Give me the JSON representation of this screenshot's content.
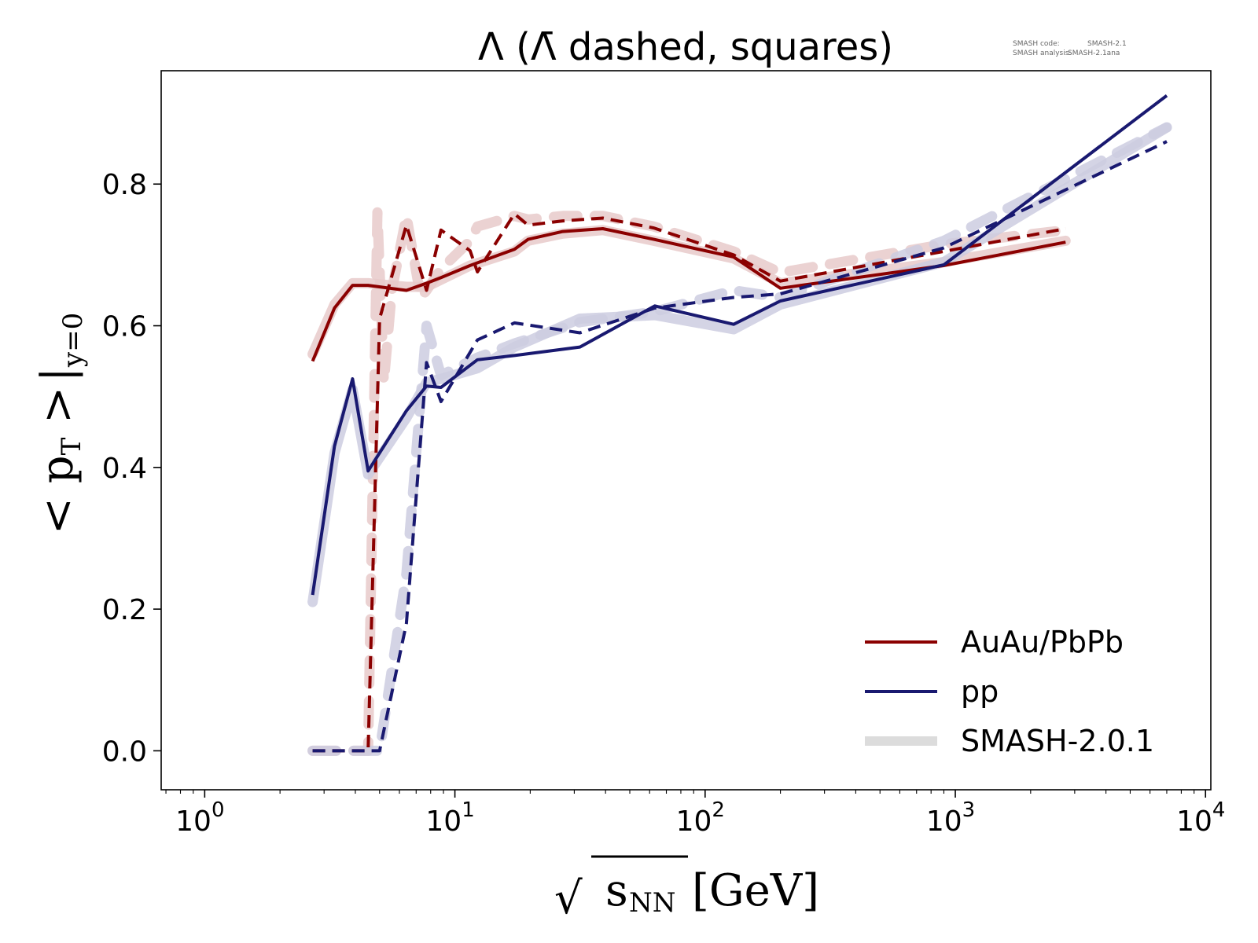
{
  "chart_data": {
    "type": "line",
    "title": "Λ (Λ̄ dashed, squares)",
    "annotation": {
      "code_label": "SMASH code:",
      "code_value": "SMASH-2.1",
      "analysis_label": "SMASH analysis:",
      "analysis_value": "SMASH-2.1ana"
    },
    "xlabel": {
      "prefix": "√",
      "main": "s",
      "sub": "NN",
      "unit": "[GeV]"
    },
    "ylabel": {
      "open": "< ",
      "main": "p",
      "sub": "T",
      "close": " >",
      "bar": "|",
      "evaluated_at": "y=0"
    },
    "xscale": "log",
    "xlim": [
      0.67,
      10500
    ],
    "ylim": [
      -0.055,
      0.96
    ],
    "xticks": [
      {
        "value": 1,
        "base": "10",
        "exp": "0"
      },
      {
        "value": 10,
        "base": "10",
        "exp": "1"
      },
      {
        "value": 100,
        "base": "10",
        "exp": "2"
      },
      {
        "value": 1000,
        "base": "10",
        "exp": "3"
      },
      {
        "value": 10000,
        "base": "10",
        "exp": "4"
      }
    ],
    "yticks": [
      {
        "value": 0.0,
        "label": "0.0"
      },
      {
        "value": 0.2,
        "label": "0.2"
      },
      {
        "value": 0.4,
        "label": "0.4"
      },
      {
        "value": 0.6,
        "label": "0.6"
      },
      {
        "value": 0.8,
        "label": "0.8"
      }
    ],
    "colors": {
      "auau": "#8b0000",
      "pp": "#191970",
      "auau_ref": "#e8caca",
      "pp_ref": "#cccce0",
      "smash_legend": "#dcdcdc"
    },
    "legend": {
      "position": "lower-right",
      "entries": [
        {
          "label": "AuAu/PbPb",
          "color": "#8b0000",
          "style": "solid"
        },
        {
          "label": "pp",
          "color": "#191970",
          "style": "solid"
        },
        {
          "label": "SMASH-2.0.1",
          "color": "#dcdcdc",
          "style": "thick"
        }
      ]
    },
    "series": [
      {
        "name": "SMASH-2.0.1 AuAu/PbPb Λ",
        "role": "reference",
        "color_key": "auau_ref",
        "dashed": false,
        "x": [
          2.7,
          3.3,
          3.9,
          4.5,
          6.4,
          7.7,
          8.8,
          11.5,
          17.3,
          19.6,
          27,
          39,
          62.4,
          130,
          200,
          900,
          2760
        ],
        "y": [
          0.56,
          0.63,
          0.66,
          0.66,
          0.655,
          0.655,
          0.665,
          0.685,
          0.705,
          0.72,
          0.73,
          0.735,
          0.72,
          0.695,
          0.66,
          0.69,
          0.72
        ]
      },
      {
        "name": "SMASH-2.0.1 AuAu/PbPb Λ̄",
        "role": "reference",
        "color_key": "auau_ref",
        "dashed": true,
        "x": [
          2.7,
          3.3,
          3.9,
          4.5,
          4.9,
          5.2,
          5.6,
          6.4,
          7.3,
          7.7,
          8.8,
          11.5,
          12.3,
          17.3,
          19.6,
          27,
          39,
          62.4,
          130,
          200,
          900,
          2760
        ],
        "y": [
          0.0,
          0.0,
          0.0,
          0.0,
          0.76,
          0.52,
          0.65,
          0.755,
          0.64,
          0.65,
          0.68,
          0.72,
          0.74,
          0.755,
          0.75,
          0.755,
          0.755,
          0.74,
          0.705,
          0.675,
          0.715,
          0.735
        ]
      },
      {
        "name": "SMASH-2.0.1 pp Λ",
        "role": "reference",
        "color_key": "pp_ref",
        "dashed": false,
        "x": [
          2.7,
          3.3,
          3.9,
          4.5,
          6.4,
          7.7,
          8.8,
          12.3,
          17.3,
          31.6,
          63,
          130,
          200,
          900,
          7000
        ],
        "y": [
          0.21,
          0.42,
          0.51,
          0.39,
          0.47,
          0.52,
          0.525,
          0.54,
          0.57,
          0.61,
          0.615,
          0.595,
          0.63,
          0.69,
          0.88
        ]
      },
      {
        "name": "SMASH-2.0.1 pp Λ̄",
        "role": "reference",
        "color_key": "pp_ref",
        "dashed": true,
        "x": [
          2.7,
          3.3,
          3.9,
          4.5,
          5.0,
          6.4,
          7.7,
          8.8,
          12.3,
          17.3,
          31.6,
          63,
          130,
          200,
          900,
          7000
        ],
        "y": [
          0.0,
          0.0,
          0.0,
          0.0,
          0.0,
          0.25,
          0.6,
          0.53,
          0.555,
          0.575,
          0.605,
          0.62,
          0.65,
          0.64,
          0.72,
          0.88
        ]
      },
      {
        "name": "AuAu/PbPb Λ",
        "role": "data",
        "color_key": "auau",
        "dashed": false,
        "x": [
          2.7,
          3.3,
          3.9,
          4.5,
          6.4,
          7.7,
          8.8,
          11.5,
          17.3,
          19.6,
          27,
          39,
          62.4,
          130,
          200,
          900,
          2760
        ],
        "y": [
          0.55,
          0.625,
          0.657,
          0.657,
          0.65,
          0.66,
          0.668,
          0.685,
          0.708,
          0.722,
          0.733,
          0.737,
          0.722,
          0.697,
          0.653,
          0.685,
          0.718
        ]
      },
      {
        "name": "AuAu/PbPb Λ̄",
        "role": "data",
        "color_key": "auau",
        "dashed": true,
        "x": [
          2.7,
          3.3,
          3.9,
          4.5,
          5.0,
          6.4,
          7.7,
          8.8,
          11.5,
          12.3,
          17.3,
          19.6,
          27,
          39,
          62.4,
          130,
          200,
          900,
          2760
        ],
        "y": [
          0.0,
          0.0,
          0.0,
          0.0,
          0.61,
          0.742,
          0.65,
          0.735,
          0.706,
          0.676,
          0.758,
          0.742,
          0.748,
          0.752,
          0.738,
          0.7,
          0.663,
          0.705,
          0.737
        ]
      },
      {
        "name": "pp Λ",
        "role": "data",
        "color_key": "pp",
        "dashed": false,
        "x": [
          2.7,
          3.3,
          3.9,
          4.5,
          6.4,
          7.7,
          8.8,
          12.3,
          17.3,
          31.6,
          63,
          130,
          200,
          900,
          7000
        ],
        "y": [
          0.22,
          0.43,
          0.525,
          0.395,
          0.48,
          0.515,
          0.513,
          0.552,
          0.558,
          0.57,
          0.628,
          0.602,
          0.635,
          0.686,
          0.925
        ]
      },
      {
        "name": "pp Λ̄",
        "role": "data",
        "color_key": "pp",
        "dashed": true,
        "x": [
          2.7,
          3.3,
          3.9,
          4.5,
          5.0,
          6.4,
          7.7,
          8.8,
          12.3,
          17.3,
          31.6,
          63,
          130,
          200,
          900,
          7000
        ],
        "y": [
          0.0,
          0.0,
          0.0,
          0.0,
          0.0,
          0.18,
          0.548,
          0.493,
          0.58,
          0.604,
          0.59,
          0.625,
          0.64,
          0.645,
          0.71,
          0.86
        ]
      }
    ]
  }
}
